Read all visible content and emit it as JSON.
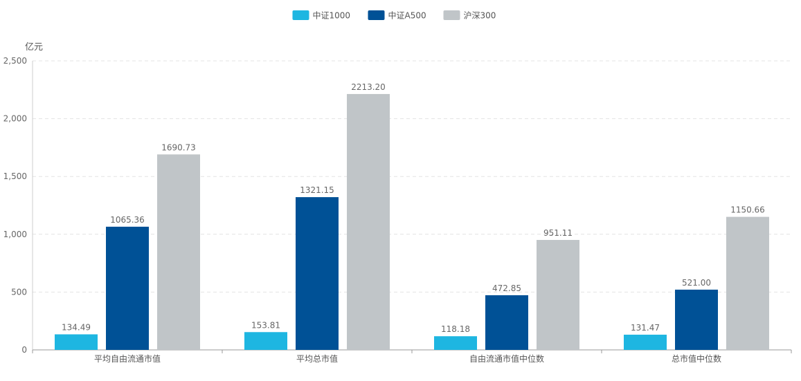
{
  "chart_data": {
    "type": "bar",
    "categories": [
      "平均自由流通市值",
      "平均总市值",
      "自由流通市值中位数",
      "总市值中位数"
    ],
    "series": [
      {
        "name": "中证1000",
        "color": "#1eb6e1",
        "values": [
          134.49,
          153.81,
          118.18,
          131.47
        ],
        "labels": [
          "134.49",
          "153.81",
          "118.18",
          "131.47"
        ]
      },
      {
        "name": "中证A500",
        "color": "#005196",
        "values": [
          1065.36,
          1321.15,
          472.85,
          521.0
        ],
        "labels": [
          "1065.36",
          "1321.15",
          "472.85",
          "521.00"
        ]
      },
      {
        "name": "沪深300",
        "color": "#c0c5c8",
        "values": [
          1690.73,
          2213.2,
          951.11,
          1150.66
        ],
        "labels": [
          "1690.73",
          "2213.20",
          "951.11",
          "1150.66"
        ]
      }
    ],
    "title": "",
    "xlabel": "",
    "ylabel": "亿元",
    "ylim": [
      0,
      2500
    ],
    "yticks": [
      0,
      500,
      1000,
      1500,
      2000,
      2500
    ],
    "ytick_labels": [
      "0",
      "500",
      "1,000",
      "1,500",
      "2,000",
      "2,500"
    ],
    "grid": true,
    "legend_position": "top-center"
  }
}
